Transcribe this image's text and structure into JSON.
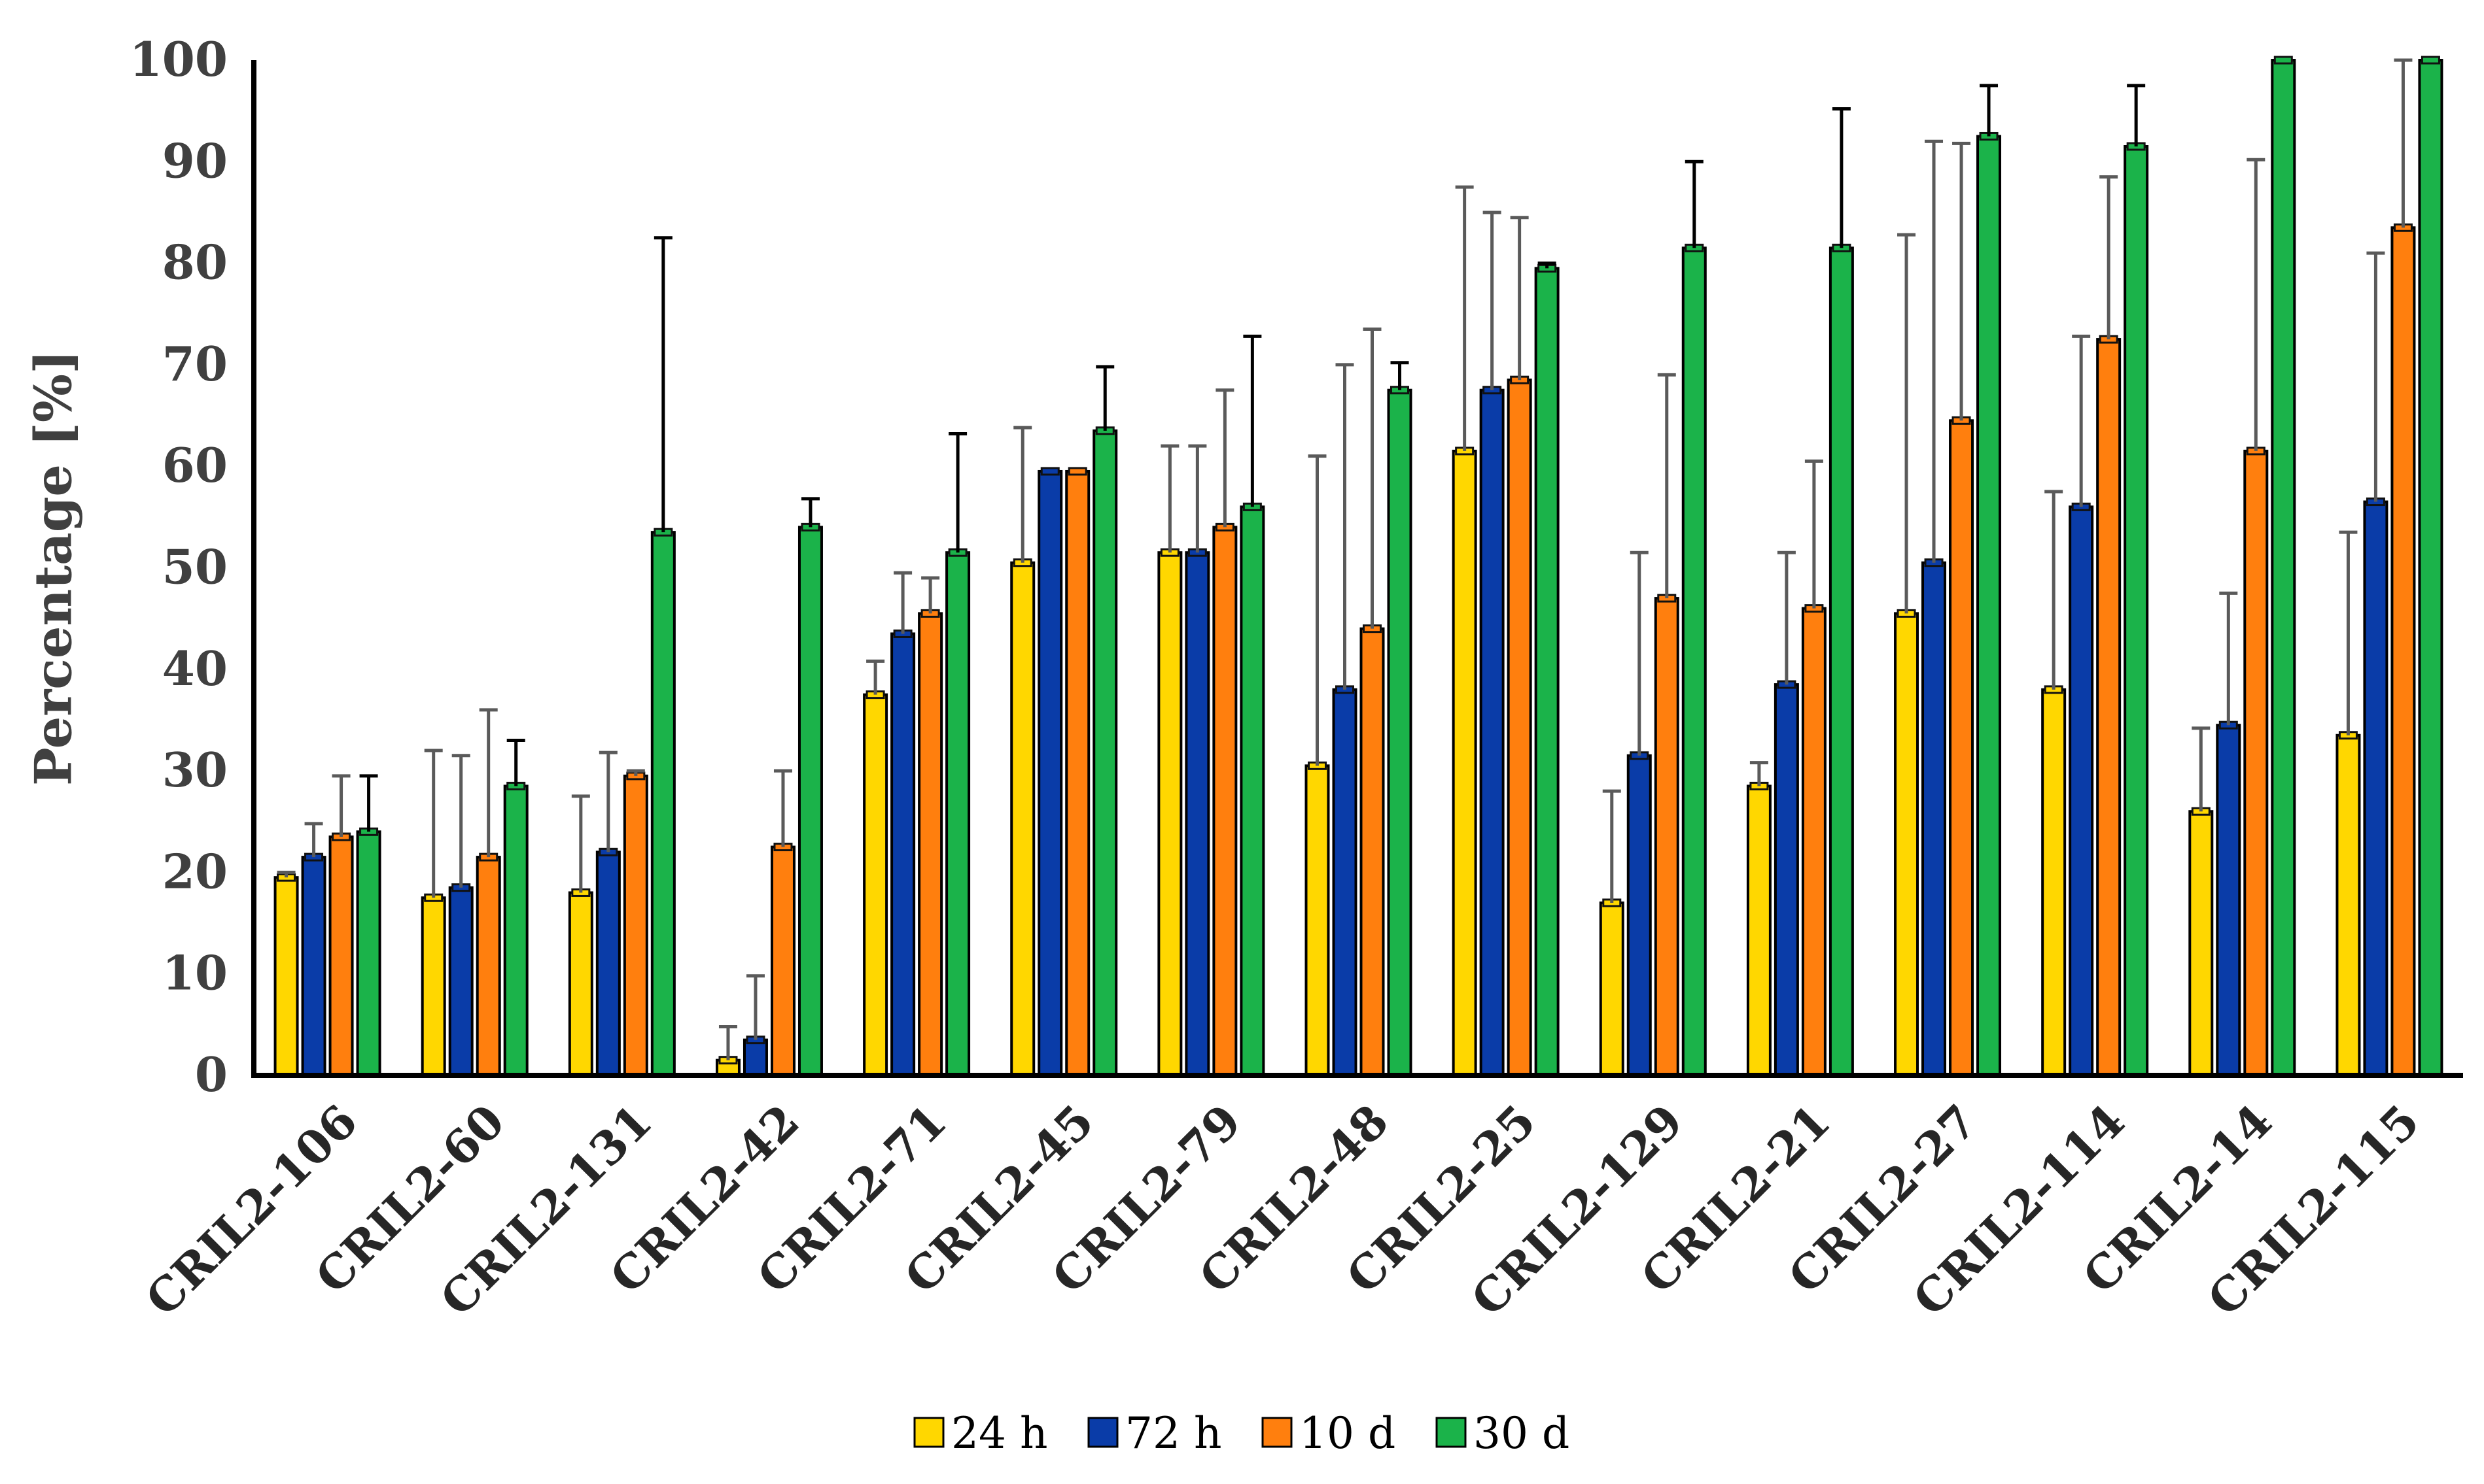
{
  "chart_data": {
    "type": "bar",
    "title": "",
    "xlabel": "",
    "ylabel": "Percentage [%]",
    "ylim": [
      0,
      100
    ],
    "yticks": [
      "0",
      "10",
      "20",
      "30",
      "40",
      "50",
      "60",
      "70",
      "80",
      "90",
      "100"
    ],
    "grid": false,
    "legend_position": "bottom-center",
    "categories": [
      "CRIL2-106",
      "CRIL2-60",
      "CRIL2-131",
      "CRIL2-42",
      "CRIL2-71",
      "CRIL2-45",
      "CRIL2-79",
      "CRIL2-48",
      "CRIL2-25",
      "CRIL2-129",
      "CRIL2-21",
      "CRIL2-27",
      "CRIL2-114",
      "CRIL2-14",
      "CRIL2-115"
    ],
    "series": [
      {
        "name": "24 h",
        "color": "#FFD700",
        "values": [
          19.5,
          17.5,
          18,
          1.5,
          37.5,
          50.5,
          51.5,
          30.5,
          61.5,
          17,
          28.5,
          45.5,
          38,
          26,
          33.5
        ],
        "error_upper": [
          20,
          32,
          27.5,
          4.8,
          40.8,
          63.8,
          62,
          61,
          87.5,
          28,
          30.8,
          82.8,
          57.5,
          34.2,
          53.5
        ]
      },
      {
        "name": "72 h",
        "color": "#0A3CA8",
        "values": [
          21.5,
          18.5,
          22,
          3.5,
          43.5,
          59.5,
          51.5,
          38,
          67.5,
          31.5,
          38.5,
          50.5,
          56,
          34.5,
          56.5
        ],
        "error_upper": [
          24.8,
          31.5,
          31.8,
          9.8,
          49.5,
          59.5,
          62,
          70,
          85,
          51.5,
          51.5,
          92,
          72.8,
          47.5,
          81
        ]
      },
      {
        "name": "10 d",
        "color": "#FF7F0E",
        "values": [
          23.5,
          21.5,
          29.5,
          22.5,
          45.5,
          59.5,
          54,
          44,
          68.5,
          47,
          46,
          64.5,
          72.5,
          61.5,
          83.5
        ],
        "error_upper": [
          29.5,
          36,
          30,
          30,
          49,
          59.5,
          67.5,
          73.5,
          84.5,
          69,
          60.5,
          91.8,
          88.5,
          90.2,
          100
        ]
      },
      {
        "name": "30 d",
        "color": "#1BB34A",
        "values": [
          24,
          28.5,
          53.5,
          54,
          51.5,
          63.5,
          56,
          67.5,
          79.5,
          81.5,
          81.5,
          92.5,
          91.5,
          100,
          100
        ],
        "error_upper": [
          29.5,
          33,
          82.5,
          56.8,
          63.2,
          69.8,
          72.8,
          70.2,
          80,
          90,
          95.2,
          97.5,
          97.5,
          100,
          100
        ]
      }
    ]
  }
}
